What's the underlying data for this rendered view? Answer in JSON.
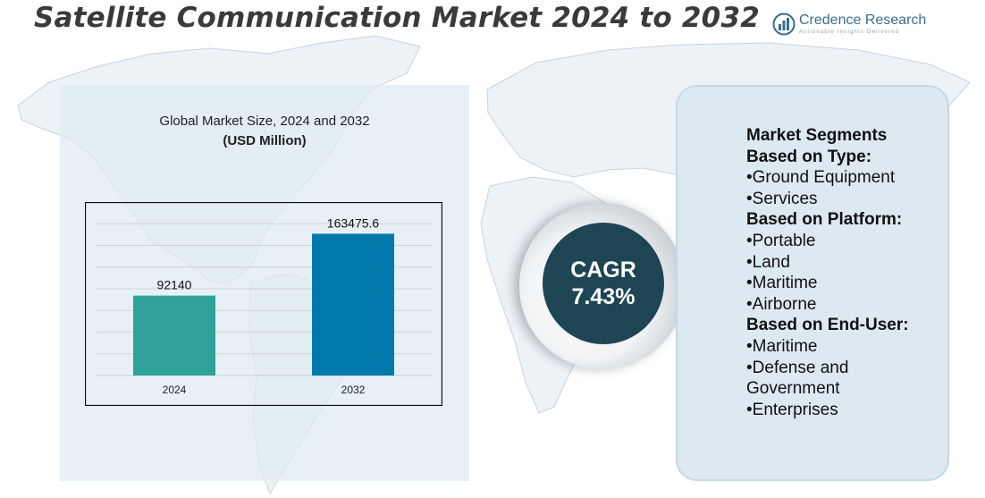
{
  "title": "Satellite Communication Market 2024 to 2032",
  "logo": {
    "name": "Credence Research",
    "tagline": "Actionable Insights Delivered",
    "icon": "bar-chart-globe-icon",
    "color": "#3a6d8c"
  },
  "chart_data": {
    "type": "bar",
    "title": "Global Market Size, 2024 and 2032",
    "unit": "(USD Million)",
    "categories": [
      "2024",
      "2032"
    ],
    "values": [
      92140,
      163475.6
    ],
    "value_labels": [
      "92140",
      "163475.6"
    ],
    "colors": [
      "#2fa39a",
      "#0279ad"
    ],
    "ylim": [
      0,
      200000
    ],
    "grid": true,
    "legend": "none"
  },
  "cagr": {
    "label": "CAGR",
    "value": "7.43%",
    "color": "#1e4554"
  },
  "segments": {
    "heading": "Market Segments",
    "groups": [
      {
        "title": "Based on Type:",
        "items": [
          "Ground Equipment",
          "Services"
        ]
      },
      {
        "title": "Based on Platform:",
        "items": [
          "Portable",
          "Land",
          "Maritime",
          "Airborne"
        ]
      },
      {
        "title": "Based on End-User:",
        "items": [
          "Maritime",
          "Defense and Government",
          "Enterprises"
        ]
      }
    ]
  }
}
